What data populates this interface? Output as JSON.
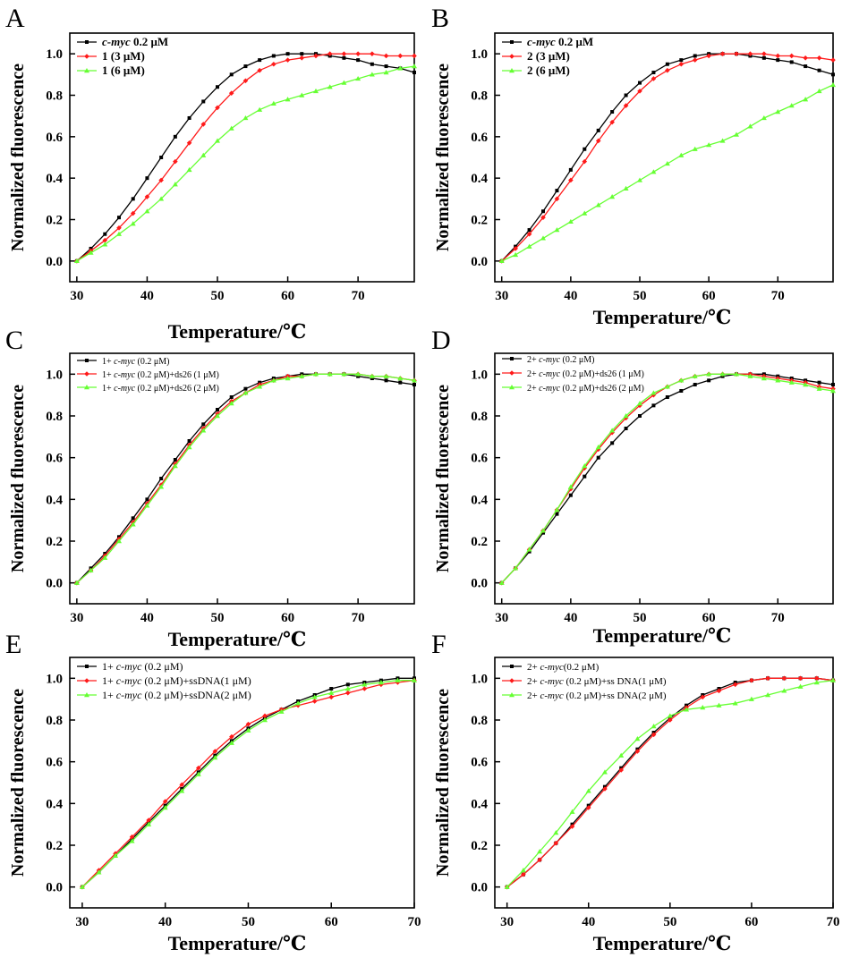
{
  "figure": {
    "colors": {
      "black": "#000000",
      "red": "#ff1a1a",
      "green": "#66ff33"
    },
    "markers": {
      "black": "square",
      "red": "diamond",
      "green": "triangle"
    }
  },
  "chart_data": [
    {
      "panel": "A",
      "type": "line",
      "xlabel": "Temperature/℃",
      "ylabel": "Normalized fluorescence",
      "xlim": [
        29,
        78
      ],
      "ylim": [
        -0.1,
        1.1
      ],
      "xticks": [
        30,
        40,
        50,
        60,
        70
      ],
      "yticks": [
        0.0,
        0.2,
        0.4,
        0.6,
        0.8,
        1.0
      ],
      "x": [
        30,
        32,
        34,
        36,
        38,
        40,
        42,
        44,
        46,
        48,
        50,
        52,
        54,
        56,
        58,
        60,
        62,
        64,
        66,
        68,
        70,
        72,
        74,
        76,
        78
      ],
      "legend": "top-left",
      "series": [
        {
          "name": "c-myc 0.2 μM",
          "color": "black",
          "values": [
            0.0,
            0.06,
            0.13,
            0.21,
            0.3,
            0.4,
            0.5,
            0.6,
            0.69,
            0.77,
            0.84,
            0.9,
            0.94,
            0.97,
            0.99,
            1.0,
            1.0,
            1.0,
            0.99,
            0.98,
            0.97,
            0.95,
            0.94,
            0.93,
            0.91
          ]
        },
        {
          "name": "1 (3  μM)",
          "color": "red",
          "values": [
            0.0,
            0.05,
            0.1,
            0.16,
            0.23,
            0.31,
            0.39,
            0.48,
            0.57,
            0.66,
            0.74,
            0.81,
            0.87,
            0.92,
            0.95,
            0.97,
            0.98,
            0.99,
            1.0,
            1.0,
            1.0,
            1.0,
            0.99,
            0.99,
            0.99
          ]
        },
        {
          "name": "1 (6  μM)",
          "color": "green",
          "values": [
            0.0,
            0.04,
            0.08,
            0.13,
            0.18,
            0.24,
            0.3,
            0.37,
            0.44,
            0.51,
            0.58,
            0.64,
            0.69,
            0.73,
            0.76,
            0.78,
            0.8,
            0.82,
            0.84,
            0.86,
            0.88,
            0.9,
            0.91,
            0.93,
            0.94
          ]
        }
      ]
    },
    {
      "panel": "B",
      "type": "line",
      "xlabel": "Temperature/℃",
      "ylabel": "Normalized fluorescence",
      "xlim": [
        29,
        78
      ],
      "ylim": [
        -0.1,
        1.1
      ],
      "xticks": [
        30,
        40,
        50,
        60,
        70
      ],
      "yticks": [
        0.0,
        0.2,
        0.4,
        0.6,
        0.8,
        1.0
      ],
      "x": [
        30,
        32,
        34,
        36,
        38,
        40,
        42,
        44,
        46,
        48,
        50,
        52,
        54,
        56,
        58,
        60,
        62,
        64,
        66,
        68,
        70,
        72,
        74,
        76,
        78
      ],
      "legend": "top-left",
      "series": [
        {
          "name": "c-myc  0.2 μM",
          "color": "black",
          "values": [
            0.0,
            0.07,
            0.15,
            0.24,
            0.34,
            0.44,
            0.54,
            0.63,
            0.72,
            0.8,
            0.86,
            0.91,
            0.95,
            0.97,
            0.99,
            1.0,
            1.0,
            1.0,
            0.99,
            0.98,
            0.97,
            0.96,
            0.94,
            0.92,
            0.9
          ]
        },
        {
          "name": "2 (3 μM)",
          "color": "red",
          "values": [
            0.0,
            0.06,
            0.13,
            0.21,
            0.3,
            0.39,
            0.48,
            0.58,
            0.67,
            0.75,
            0.82,
            0.88,
            0.92,
            0.95,
            0.97,
            0.99,
            1.0,
            1.0,
            1.0,
            1.0,
            0.99,
            0.99,
            0.98,
            0.98,
            0.97
          ]
        },
        {
          "name": "2 (6 μM)",
          "color": "green",
          "values": [
            0.0,
            0.03,
            0.07,
            0.11,
            0.15,
            0.19,
            0.23,
            0.27,
            0.31,
            0.35,
            0.39,
            0.43,
            0.47,
            0.51,
            0.54,
            0.56,
            0.58,
            0.61,
            0.65,
            0.69,
            0.72,
            0.75,
            0.78,
            0.82,
            0.85
          ]
        }
      ]
    },
    {
      "panel": "C",
      "type": "line",
      "xlabel": "Temperature/℃",
      "ylabel": "Normalized fluorescence",
      "xlim": [
        29,
        78
      ],
      "ylim": [
        -0.1,
        1.1
      ],
      "xticks": [
        30,
        40,
        50,
        60,
        70
      ],
      "yticks": [
        0.0,
        0.2,
        0.4,
        0.6,
        0.8,
        1.0
      ],
      "x": [
        30,
        32,
        34,
        36,
        38,
        40,
        42,
        44,
        46,
        48,
        50,
        52,
        54,
        56,
        58,
        60,
        62,
        64,
        66,
        68,
        70,
        72,
        74,
        76,
        78
      ],
      "legend": "top-left",
      "series": [
        {
          "name": "1+ c-myc (0.2 μM)",
          "color": "black",
          "values": [
            0.0,
            0.07,
            0.14,
            0.22,
            0.31,
            0.4,
            0.5,
            0.59,
            0.68,
            0.76,
            0.83,
            0.89,
            0.93,
            0.96,
            0.98,
            0.99,
            1.0,
            1.0,
            1.0,
            1.0,
            0.99,
            0.98,
            0.97,
            0.96,
            0.95
          ]
        },
        {
          "name": "1+ c-myc (0.2 μM)+ds26 (1 μM)",
          "color": "red",
          "values": [
            0.0,
            0.06,
            0.13,
            0.21,
            0.29,
            0.38,
            0.47,
            0.57,
            0.66,
            0.74,
            0.81,
            0.87,
            0.91,
            0.95,
            0.97,
            0.99,
            0.99,
            1.0,
            1.0,
            1.0,
            1.0,
            0.99,
            0.99,
            0.98,
            0.97
          ]
        },
        {
          "name": "1+ c-myc (0.2 μM)+ds26 (2 μM)",
          "color": "green",
          "values": [
            0.0,
            0.06,
            0.12,
            0.2,
            0.28,
            0.37,
            0.46,
            0.56,
            0.65,
            0.73,
            0.8,
            0.86,
            0.91,
            0.94,
            0.97,
            0.98,
            0.99,
            1.0,
            1.0,
            1.0,
            1.0,
            0.99,
            0.99,
            0.98,
            0.97
          ]
        }
      ]
    },
    {
      "panel": "D",
      "type": "line",
      "xlabel": "Temperature/℃",
      "ylabel": "Normalized fluorescence",
      "xlim": [
        29,
        78
      ],
      "ylim": [
        -0.1,
        1.1
      ],
      "xticks": [
        30,
        40,
        50,
        60,
        70
      ],
      "yticks": [
        0.0,
        0.2,
        0.4,
        0.6,
        0.8,
        1.0
      ],
      "x": [
        30,
        32,
        34,
        36,
        38,
        40,
        42,
        44,
        46,
        48,
        50,
        52,
        54,
        56,
        58,
        60,
        62,
        64,
        66,
        68,
        70,
        72,
        74,
        76,
        78
      ],
      "legend": "top-left",
      "series": [
        {
          "name": "2+ c-myc (0.2 μM)",
          "color": "black",
          "values": [
            0.0,
            0.07,
            0.15,
            0.24,
            0.33,
            0.42,
            0.51,
            0.6,
            0.67,
            0.74,
            0.8,
            0.85,
            0.89,
            0.92,
            0.95,
            0.97,
            0.99,
            1.0,
            1.0,
            1.0,
            0.99,
            0.98,
            0.97,
            0.96,
            0.95
          ]
        },
        {
          "name": "2+ c-myc (0.2 μM)+ds26 (1 μM)",
          "color": "red",
          "values": [
            0.0,
            0.07,
            0.16,
            0.25,
            0.35,
            0.45,
            0.55,
            0.64,
            0.72,
            0.79,
            0.85,
            0.9,
            0.94,
            0.97,
            0.99,
            1.0,
            1.0,
            1.0,
            1.0,
            0.99,
            0.98,
            0.97,
            0.96,
            0.94,
            0.93
          ]
        },
        {
          "name": "2+ c-myc (0.2 μM)+ds26 (2 μM)",
          "color": "green",
          "values": [
            0.0,
            0.07,
            0.16,
            0.25,
            0.35,
            0.46,
            0.56,
            0.65,
            0.73,
            0.8,
            0.86,
            0.91,
            0.94,
            0.97,
            0.99,
            1.0,
            1.0,
            1.0,
            0.99,
            0.98,
            0.97,
            0.96,
            0.95,
            0.93,
            0.92
          ]
        }
      ]
    },
    {
      "panel": "E",
      "type": "line",
      "xlabel": "Temperature/℃",
      "ylabel": "Normalized fluorescence",
      "xlim": [
        28.5,
        70
      ],
      "ylim": [
        -0.1,
        1.1
      ],
      "xticks": [
        30,
        40,
        50,
        60,
        70
      ],
      "yticks": [
        0.0,
        0.2,
        0.4,
        0.6,
        0.8,
        1.0
      ],
      "x": [
        30,
        32,
        34,
        36,
        38,
        40,
        42,
        44,
        46,
        48,
        50,
        52,
        54,
        56,
        58,
        60,
        62,
        64,
        66,
        68,
        70
      ],
      "legend": "top-left",
      "series": [
        {
          "name": "1+ c-myc (0.2 μM)",
          "color": "black",
          "values": [
            0.0,
            0.07,
            0.15,
            0.23,
            0.31,
            0.39,
            0.47,
            0.55,
            0.63,
            0.7,
            0.76,
            0.81,
            0.85,
            0.89,
            0.92,
            0.95,
            0.97,
            0.98,
            0.99,
            1.0,
            1.0
          ]
        },
        {
          "name": "1+ c-myc (0.2 μM)+ssDNA(1 μM)",
          "color": "red",
          "values": [
            0.0,
            0.08,
            0.16,
            0.24,
            0.32,
            0.41,
            0.49,
            0.57,
            0.65,
            0.72,
            0.78,
            0.82,
            0.85,
            0.87,
            0.89,
            0.91,
            0.93,
            0.95,
            0.97,
            0.98,
            0.99
          ]
        },
        {
          "name": "1+ c-myc (0.2 μM)+ssDNA(2 μM)",
          "color": "green",
          "values": [
            0.0,
            0.07,
            0.15,
            0.22,
            0.3,
            0.38,
            0.46,
            0.54,
            0.62,
            0.69,
            0.75,
            0.8,
            0.84,
            0.88,
            0.91,
            0.93,
            0.95,
            0.97,
            0.98,
            0.99,
            0.99
          ]
        }
      ]
    },
    {
      "panel": "F",
      "type": "line",
      "xlabel": "Temperature/℃",
      "ylabel": "Normalized fluorescence",
      "xlim": [
        28.5,
        70
      ],
      "ylim": [
        -0.1,
        1.1
      ],
      "xticks": [
        30,
        40,
        50,
        60,
        70
      ],
      "yticks": [
        0.0,
        0.2,
        0.4,
        0.6,
        0.8,
        1.0
      ],
      "x": [
        30,
        32,
        34,
        36,
        38,
        40,
        42,
        44,
        46,
        48,
        50,
        52,
        54,
        56,
        58,
        60,
        62,
        64,
        66,
        68,
        70
      ],
      "legend": "top-left",
      "series": [
        {
          "name": "2+ c-myc(0.2 μM)",
          "color": "black",
          "values": [
            0.0,
            0.06,
            0.13,
            0.21,
            0.3,
            0.39,
            0.48,
            0.57,
            0.66,
            0.74,
            0.81,
            0.87,
            0.92,
            0.95,
            0.98,
            0.99,
            1.0,
            1.0,
            1.0,
            1.0,
            0.99
          ]
        },
        {
          "name": "2+ c-myc (0.2 μM)+ss DNA(1 μM)",
          "color": "red",
          "values": [
            0.0,
            0.06,
            0.13,
            0.21,
            0.29,
            0.38,
            0.47,
            0.56,
            0.65,
            0.73,
            0.8,
            0.86,
            0.91,
            0.94,
            0.97,
            0.99,
            1.0,
            1.0,
            1.0,
            1.0,
            0.99
          ]
        },
        {
          "name": "2+ c-myc (0.2 μM)+ss DNA(2 μM)",
          "color": "green",
          "values": [
            0.0,
            0.08,
            0.17,
            0.26,
            0.36,
            0.46,
            0.55,
            0.63,
            0.71,
            0.77,
            0.82,
            0.85,
            0.86,
            0.87,
            0.88,
            0.9,
            0.92,
            0.94,
            0.96,
            0.98,
            0.99
          ]
        }
      ]
    }
  ]
}
